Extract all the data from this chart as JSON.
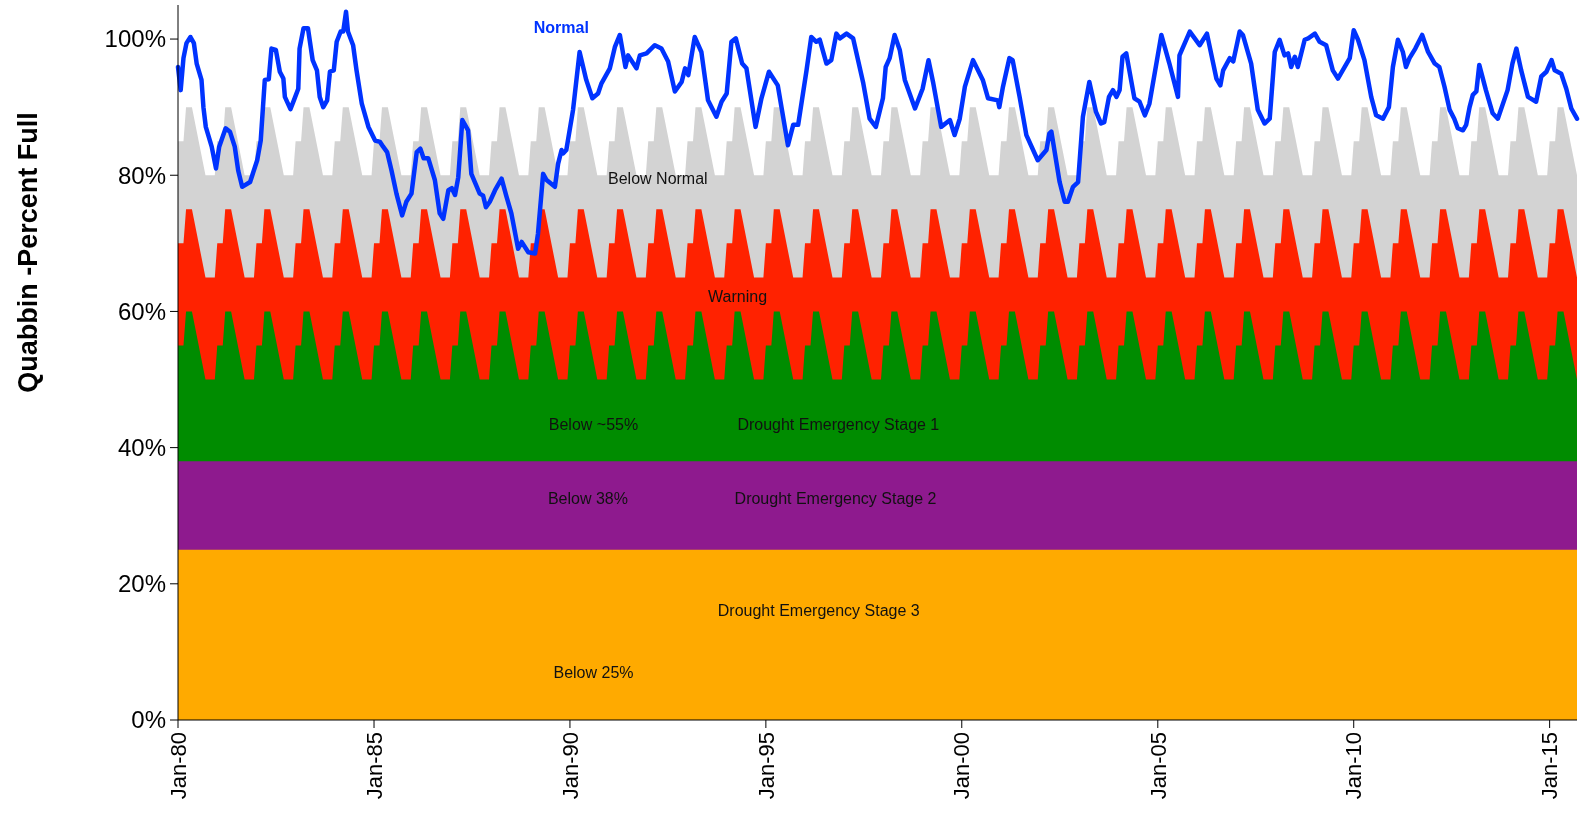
{
  "chart_data": {
    "type": "area",
    "ylabel": "Quabbin -Percent Full",
    "xlim": [
      "1980-01-01",
      "2015-09-13"
    ],
    "ylim": [
      0,
      105
    ],
    "xticks": [
      {
        "value": "1980-01-01",
        "label": "Jan-80"
      },
      {
        "value": "1985-01-01",
        "label": "Jan-85"
      },
      {
        "value": "1990-01-01",
        "label": "Jan-90"
      },
      {
        "value": "1995-01-01",
        "label": "Jan-95"
      },
      {
        "value": "2000-01-01",
        "label": "Jan-00"
      },
      {
        "value": "2005-01-01",
        "label": "Jan-05"
      },
      {
        "value": "2010-01-01",
        "label": "Jan-10"
      },
      {
        "value": "2015-01-01",
        "label": "Jan-15"
      }
    ],
    "yticks": [
      {
        "value": 0,
        "label": "0%"
      },
      {
        "value": 20,
        "label": "20%"
      },
      {
        "value": 40,
        "label": "40%"
      },
      {
        "value": 60,
        "label": "60%"
      },
      {
        "value": 80,
        "label": "80%"
      },
      {
        "value": 100,
        "label": "100%"
      }
    ],
    "annotations": [
      "Below ~55%",
      "Below 38%",
      "Below 25%"
    ],
    "x": [
      "1980-01-01",
      "1980-02-21",
      "1980-03-16",
      "1980-05-10",
      "1980-09-13",
      "1980-12-09",
      "1981-01-01",
      "1981-02-21",
      "1981-03-16",
      "1981-05-10",
      "1981-09-13",
      "1981-12-09",
      "1982-01-01",
      "1982-02-21",
      "1982-03-16",
      "1982-05-10",
      "1982-09-13",
      "1982-12-09",
      "1983-01-01",
      "1983-02-21",
      "1983-03-16",
      "1983-05-10",
      "1983-09-13",
      "1983-12-09",
      "1984-01-01",
      "1984-02-21",
      "1984-03-16",
      "1984-05-10",
      "1984-09-13",
      "1984-12-09",
      "1985-01-01",
      "1985-02-21",
      "1985-03-16",
      "1985-05-10",
      "1985-09-13",
      "1985-12-09",
      "1986-01-01",
      "1986-02-21",
      "1986-03-16",
      "1986-05-10",
      "1986-09-13",
      "1986-12-09",
      "1987-01-01",
      "1987-02-21",
      "1987-03-16",
      "1987-05-10",
      "1987-09-13",
      "1987-12-09",
      "1988-01-01",
      "1988-02-21",
      "1988-03-16",
      "1988-05-10",
      "1988-09-13",
      "1988-12-09",
      "1989-01-01",
      "1989-02-21",
      "1989-03-16",
      "1989-05-10",
      "1989-09-13",
      "1989-12-09",
      "1990-01-01",
      "1990-02-21",
      "1990-03-16",
      "1990-05-10",
      "1990-09-13",
      "1990-12-09",
      "1991-01-01",
      "1991-02-21",
      "1991-03-16",
      "1991-05-10",
      "1991-09-13",
      "1991-12-09",
      "1992-01-01",
      "1992-02-21",
      "1992-03-16",
      "1992-05-10",
      "1992-09-13",
      "1992-12-09",
      "1993-01-01",
      "1993-02-21",
      "1993-03-16",
      "1993-05-10",
      "1993-09-13",
      "1993-12-09",
      "1994-01-01",
      "1994-02-21",
      "1994-03-16",
      "1994-05-10",
      "1994-09-13",
      "1994-12-09",
      "1995-01-01",
      "1995-02-21",
      "1995-03-16",
      "1995-05-10",
      "1995-09-13",
      "1995-12-09",
      "1996-01-01",
      "1996-02-21",
      "1996-03-16",
      "1996-05-10",
      "1996-09-13",
      "1996-12-09",
      "1997-01-01",
      "1997-02-21",
      "1997-03-16",
      "1997-05-10",
      "1997-09-13",
      "1997-12-09",
      "1998-01-01",
      "1998-02-21",
      "1998-03-16",
      "1998-05-10",
      "1998-09-13",
      "1998-12-09",
      "1999-01-01",
      "1999-02-21",
      "1999-03-16",
      "1999-05-10",
      "1999-09-13",
      "1999-12-09",
      "2000-01-01",
      "2000-02-21",
      "2000-03-16",
      "2000-05-10",
      "2000-09-13",
      "2000-12-09",
      "2001-01-01",
      "2001-02-21",
      "2001-03-16",
      "2001-05-10",
      "2001-09-13",
      "2001-12-09",
      "2002-01-01",
      "2002-02-21",
      "2002-03-16",
      "2002-05-10",
      "2002-09-13",
      "2002-12-09",
      "2003-01-01",
      "2003-02-21",
      "2003-03-16",
      "2003-05-10",
      "2003-09-13",
      "2003-12-09",
      "2004-01-01",
      "2004-02-21",
      "2004-03-16",
      "2004-05-10",
      "2004-09-13",
      "2004-12-09",
      "2005-01-01",
      "2005-02-21",
      "2005-03-16",
      "2005-05-10",
      "2005-09-13",
      "2005-12-09",
      "2006-01-01",
      "2006-02-21",
      "2006-03-16",
      "2006-05-10",
      "2006-09-13",
      "2006-12-09",
      "2007-01-01",
      "2007-02-21",
      "2007-03-16",
      "2007-05-10",
      "2007-09-13",
      "2007-12-09",
      "2008-01-01",
      "2008-02-21",
      "2008-03-16",
      "2008-05-10",
      "2008-09-13",
      "2008-12-09",
      "2009-01-01",
      "2009-02-21",
      "2009-03-16",
      "2009-05-10",
      "2009-09-13",
      "2009-12-09",
      "2010-01-01",
      "2010-02-21",
      "2010-03-16",
      "2010-05-10",
      "2010-09-13",
      "2010-12-09",
      "2011-01-01",
      "2011-02-21",
      "2011-03-16",
      "2011-05-10",
      "2011-09-13",
      "2011-12-09",
      "2012-01-01",
      "2012-02-21",
      "2012-03-16",
      "2012-05-10",
      "2012-09-13",
      "2012-12-09",
      "2013-01-01",
      "2013-02-21",
      "2013-03-16",
      "2013-05-10",
      "2013-09-13",
      "2013-12-09",
      "2014-01-01",
      "2014-02-21",
      "2014-03-16",
      "2014-05-10",
      "2014-09-13",
      "2014-12-09",
      "2015-01-01",
      "2015-02-21",
      "2015-03-16",
      "2015-05-10",
      "2015-09-13"
    ],
    "series": [
      {
        "name": "Below Normal",
        "color": "#d3d3d3",
        "values": [
          85,
          85,
          90,
          90,
          80,
          80,
          85,
          85,
          90,
          90,
          80,
          80,
          85,
          85,
          90,
          90,
          80,
          80,
          85,
          85,
          90,
          90,
          80,
          80,
          85,
          85,
          90,
          90,
          80,
          80,
          85,
          85,
          90,
          90,
          80,
          80,
          85,
          85,
          90,
          90,
          80,
          80,
          85,
          85,
          90,
          90,
          80,
          80,
          85,
          85,
          90,
          90,
          80,
          80,
          85,
          85,
          90,
          90,
          80,
          80,
          85,
          85,
          90,
          90,
          80,
          80,
          85,
          85,
          90,
          90,
          80,
          80,
          85,
          85,
          90,
          90,
          80,
          80,
          85,
          85,
          90,
          90,
          80,
          80,
          85,
          85,
          90,
          90,
          80,
          80,
          85,
          85,
          90,
          90,
          80,
          80,
          85,
          85,
          90,
          90,
          80,
          80,
          85,
          85,
          90,
          90,
          80,
          80,
          85,
          85,
          90,
          90,
          80,
          80,
          85,
          85,
          90,
          90,
          80,
          80,
          85,
          85,
          90,
          90,
          80,
          80,
          85,
          85,
          90,
          90,
          80,
          80,
          85,
          85,
          90,
          90,
          80,
          80,
          85,
          85,
          90,
          90,
          80,
          80,
          85,
          85,
          90,
          90,
          80,
          80,
          85,
          85,
          90,
          90,
          80,
          80,
          85,
          85,
          90,
          90,
          80,
          80,
          85,
          85,
          90,
          90,
          80,
          80,
          85,
          85,
          90,
          90,
          80,
          80,
          85,
          85,
          90,
          90,
          80,
          80,
          85,
          85,
          90,
          90,
          80,
          80,
          85,
          85,
          90,
          90,
          80,
          80,
          85,
          85,
          90,
          90,
          80,
          80,
          85,
          85,
          90,
          90,
          80,
          80,
          85,
          85,
          90,
          90,
          80,
          80,
          85,
          85,
          90,
          90,
          80
        ]
      },
      {
        "name": "Warning",
        "color": "#ff2200",
        "values": [
          70,
          70,
          75,
          75,
          65,
          65,
          70,
          70,
          75,
          75,
          65,
          65,
          70,
          70,
          75,
          75,
          65,
          65,
          70,
          70,
          75,
          75,
          65,
          65,
          70,
          70,
          75,
          75,
          65,
          65,
          70,
          70,
          75,
          75,
          65,
          65,
          70,
          70,
          75,
          75,
          65,
          65,
          70,
          70,
          75,
          75,
          65,
          65,
          70,
          70,
          75,
          75,
          65,
          65,
          70,
          70,
          75,
          75,
          65,
          65,
          70,
          70,
          75,
          75,
          65,
          65,
          70,
          70,
          75,
          75,
          65,
          65,
          70,
          70,
          75,
          75,
          65,
          65,
          70,
          70,
          75,
          75,
          65,
          65,
          70,
          70,
          75,
          75,
          65,
          65,
          70,
          70,
          75,
          75,
          65,
          65,
          70,
          70,
          75,
          75,
          65,
          65,
          70,
          70,
          75,
          75,
          65,
          65,
          70,
          70,
          75,
          75,
          65,
          65,
          70,
          70,
          75,
          75,
          65,
          65,
          70,
          70,
          75,
          75,
          65,
          65,
          70,
          70,
          75,
          75,
          65,
          65,
          70,
          70,
          75,
          75,
          65,
          65,
          70,
          70,
          75,
          75,
          65,
          65,
          70,
          70,
          75,
          75,
          65,
          65,
          70,
          70,
          75,
          75,
          65,
          65,
          70,
          70,
          75,
          75,
          65,
          65,
          70,
          70,
          75,
          75,
          65,
          65,
          70,
          70,
          75,
          75,
          65,
          65,
          70,
          70,
          75,
          75,
          65,
          65,
          70,
          70,
          75,
          75,
          65,
          65,
          70,
          70,
          75,
          75,
          65,
          65,
          70,
          70,
          75,
          75,
          65,
          65,
          70,
          70,
          75,
          75,
          65,
          65,
          70,
          70,
          75,
          75,
          65,
          65,
          70,
          70,
          75,
          75,
          65
        ]
      },
      {
        "name": "Drought Emergency Stage 1",
        "color": "#008c00",
        "values": [
          55,
          55,
          60,
          60,
          50,
          50,
          55,
          55,
          60,
          60,
          50,
          50,
          55,
          55,
          60,
          60,
          50,
          50,
          55,
          55,
          60,
          60,
          50,
          50,
          55,
          55,
          60,
          60,
          50,
          50,
          55,
          55,
          60,
          60,
          50,
          50,
          55,
          55,
          60,
          60,
          50,
          50,
          55,
          55,
          60,
          60,
          50,
          50,
          55,
          55,
          60,
          60,
          50,
          50,
          55,
          55,
          60,
          60,
          50,
          50,
          55,
          55,
          60,
          60,
          50,
          50,
          55,
          55,
          60,
          60,
          50,
          50,
          55,
          55,
          60,
          60,
          50,
          50,
          55,
          55,
          60,
          60,
          50,
          50,
          55,
          55,
          60,
          60,
          50,
          50,
          55,
          55,
          60,
          60,
          50,
          50,
          55,
          55,
          60,
          60,
          50,
          50,
          55,
          55,
          60,
          60,
          50,
          50,
          55,
          55,
          60,
          60,
          50,
          50,
          55,
          55,
          60,
          60,
          50,
          50,
          55,
          55,
          60,
          60,
          50,
          50,
          55,
          55,
          60,
          60,
          50,
          50,
          55,
          55,
          60,
          60,
          50,
          50,
          55,
          55,
          60,
          60,
          50,
          50,
          55,
          55,
          60,
          60,
          50,
          50,
          55,
          55,
          60,
          60,
          50,
          50,
          55,
          55,
          60,
          60,
          50,
          50,
          55,
          55,
          60,
          60,
          50,
          50,
          55,
          55,
          60,
          60,
          50,
          50,
          55,
          55,
          60,
          60,
          50,
          50,
          55,
          55,
          60,
          60,
          50,
          50,
          55,
          55,
          60,
          60,
          50,
          50,
          55,
          55,
          60,
          60,
          50,
          50,
          55,
          55,
          60,
          60,
          50,
          50,
          55,
          55,
          60,
          60,
          50,
          50,
          55,
          55,
          60,
          60,
          50
        ]
      },
      {
        "name": "Drought Emergency Stage 2",
        "color": "#8e1a8e",
        "x": [
          "1980-01-01",
          "2015-09-13"
        ],
        "values": [
          38,
          38
        ]
      },
      {
        "name": "Drought Emergency Stage 3",
        "color": "#ffaa00",
        "x": [
          "1980-01-01",
          "2015-09-13"
        ],
        "values": [
          25,
          25
        ]
      },
      {
        "name": "Normal",
        "type": "line",
        "color": "#0033ff",
        "x": [
          "1980-01-01",
          "1980-01-26",
          "1980-02-21",
          "1980-03-20",
          "1980-04-26",
          "1980-05-28",
          "1980-06-23",
          "1980-08-07",
          "1980-08-25",
          "1980-09-16",
          "1980-11-10",
          "1980-12-20",
          "1981-01-19",
          "1981-03-20",
          "1981-04-29",
          "1981-06-13",
          "1981-07-15",
          "1981-08-21",
          "1981-11-03",
          "1982-01-08",
          "1982-02-10",
          "1982-03-20",
          "1982-04-26",
          "1982-05-21",
          "1982-07-01",
          "1982-08-07",
          "1982-09-09",
          "1982-09-23",
          "1982-11-14",
          "1982-12-16",
          "1983-01-26",
          "1983-02-07",
          "1983-03-16",
          "1983-04-26",
          "1983-06-09",
          "1983-07-19",
          "1983-08-14",
          "1983-09-16",
          "1983-10-22",
          "1983-11-17",
          "1983-12-23",
          "1984-01-19",
          "1984-02-25",
          "1984-03-20",
          "1984-04-15",
          "1984-05-03",
          "1984-06-20",
          "1984-07-22",
          "1984-09-09",
          "1984-11-10",
          "1985-01-11",
          "1985-02-25",
          "1985-03-27",
          "1985-05-03",
          "1985-06-13",
          "1985-07-29",
          "1985-09-20",
          "1985-10-29",
          "1985-12-16",
          "1986-02-03",
          "1986-03-09",
          "1986-04-08",
          "1986-05-21",
          "1986-07-22",
          "1986-09-05",
          "1986-10-08",
          "1986-11-25",
          "1986-12-27",
          "1987-01-26",
          "1987-02-25",
          "1987-04-04",
          "1987-05-28",
          "1987-06-27",
          "1987-09-13",
          "1987-10-15",
          "1987-11-10",
          "1987-12-16",
          "1988-02-03",
          "1988-04-04",
          "1988-05-17",
          "1988-07-04",
          "1988-09-05",
          "1988-10-08",
          "1988-12-09",
          "1989-02-10",
          "1989-03-09",
          "1989-04-26",
          "1989-05-28",
          "1989-08-14",
          "1989-09-13",
          "1989-10-15",
          "1989-10-29",
          "1989-11-28",
          "1990-01-30",
          "1990-04-01",
          "1990-06-02",
          "1990-07-29",
          "1990-09-20",
          "1990-10-22",
          "1991-01-08",
          "1991-02-25",
          "1991-04-11",
          "1991-06-02",
          "1991-06-27",
          "1991-09-13",
          "1991-10-15",
          "1991-12-16",
          "1992-03-02",
          "1992-05-03",
          "1992-07-04",
          "1992-09-05",
          "1992-11-07",
          "1992-12-09",
          "1993-01-08",
          "1993-03-09",
          "1993-05-10",
          "1993-07-11",
          "1993-09-27",
          "1993-11-14",
          "1994-01-01",
          "1994-02-14",
          "1994-03-27",
          "1994-05-25",
          "1994-07-04",
          "1994-09-27",
          "1994-11-21",
          "1995-01-30",
          "1995-04-22",
          "1995-07-26",
          "1995-09-13",
          "1995-10-29",
          "1996-01-15",
          "1996-02-28",
          "1996-04-15",
          "1996-05-17",
          "1996-07-19",
          "1996-09-02",
          "1996-10-19",
          "1996-11-21",
          "1997-01-22",
          "1997-03-24",
          "1997-06-27",
          "1997-08-25",
          "1997-10-22",
          "1997-12-27",
          "1998-01-22",
          "1998-02-28",
          "1998-04-15",
          "1998-06-02",
          "1998-07-19",
          "1998-10-22",
          "1999-01-01",
          "1999-02-25",
          "1999-04-08",
          "1999-06-23",
          "1999-09-13",
          "1999-10-26",
          "1999-12-13",
          "2000-01-30",
          "2000-04-15",
          "2000-07-15",
          "2000-09-02",
          "2000-12-02",
          "2000-12-16",
          "2001-01-19",
          "2001-03-20",
          "2001-04-19",
          "2001-06-23",
          "2001-08-25",
          "2001-12-09",
          "2002-02-28",
          "2002-03-27",
          "2002-04-15",
          "2002-07-01",
          "2002-08-17",
          "2002-09-16",
          "2002-11-03",
          "2002-12-20",
          "2003-02-03",
          "2003-04-04",
          "2003-06-05",
          "2003-07-22",
          "2003-08-21",
          "2003-10-04",
          "2003-11-10",
          "2003-12-13",
          "2004-01-11",
          "2004-02-07",
          "2004-03-13",
          "2004-05-28",
          "2004-07-15",
          "2004-09-02",
          "2004-10-15",
          "2005-02-03",
          "2005-04-19",
          "2005-07-08",
          "2005-07-22",
          "2005-10-26",
          "2006-01-26",
          "2006-04-04",
          "2006-07-01",
          "2006-08-07",
          "2006-09-02",
          "2006-11-03",
          "2006-12-05",
          "2007-02-03",
          "2007-03-05",
          "2007-05-21",
          "2007-07-22",
          "2007-09-23",
          "2007-11-10",
          "2007-12-27",
          "2008-02-10",
          "2008-03-27",
          "2008-04-29",
          "2008-05-28",
          "2008-07-01",
          "2008-07-29",
          "2008-10-01",
          "2008-11-03",
          "2009-01-04",
          "2009-02-17",
          "2009-04-19",
          "2009-06-20",
          "2009-08-07",
          "2009-11-25",
          "2010-01-01",
          "2010-02-10",
          "2010-04-11",
          "2010-06-13",
          "2010-07-29",
          "2010-10-01",
          "2010-11-25",
          "2011-01-01",
          "2011-02-17",
          "2011-04-04",
          "2011-05-03",
          "2011-06-05",
          "2011-07-29",
          "2011-10-01",
          "2011-11-25",
          "2012-01-26",
          "2012-03-09",
          "2012-04-26",
          "2012-06-13",
          "2012-07-26",
          "2012-08-28",
          "2012-10-15",
          "2012-11-14",
          "2012-12-16",
          "2013-01-15",
          "2013-02-17",
          "2013-03-16",
          "2013-05-17",
          "2013-07-19",
          "2013-09-05",
          "2013-12-05",
          "2014-01-19",
          "2014-02-25",
          "2014-04-11",
          "2014-06-13",
          "2014-08-28",
          "2014-10-15",
          "2014-12-02",
          "2015-01-19",
          "2015-02-17",
          "2015-04-19",
          "2015-06-05",
          "2015-07-22",
          "2015-09-13"
        ],
        "values": [
          95.9,
          92.5,
          97.2,
          99.4,
          100.3,
          99.4,
          96.4,
          94,
          90,
          87.1,
          84.2,
          81,
          84.2,
          86.9,
          86.4,
          84.2,
          80.7,
          78.3,
          79,
          82.2,
          85.1,
          94,
          94.1,
          98.6,
          98.4,
          95.2,
          94.2,
          91.5,
          89.7,
          91,
          92.7,
          98.6,
          101.6,
          101.6,
          96.9,
          95.4,
          91.5,
          90,
          91,
          95.2,
          95.4,
          99.6,
          101.1,
          101.1,
          104,
          101.1,
          99.1,
          95.4,
          90.5,
          87.1,
          85.1,
          84.9,
          84.2,
          83.4,
          80.7,
          77.3,
          74.1,
          76.1,
          77.3,
          83.4,
          83.9,
          82.5,
          82.5,
          79.3,
          74.4,
          73.6,
          77.8,
          78.1,
          77.1,
          79.7,
          88.1,
          86.6,
          80.2,
          77.3,
          77,
          75.3,
          76.1,
          77.8,
          79.5,
          77,
          74.4,
          69.2,
          70.2,
          68.7,
          68.5,
          71.4,
          80.2,
          79.3,
          78.3,
          81.7,
          83.7,
          83.2,
          83.7,
          89.6,
          98.1,
          94,
          91.3,
          92,
          93.5,
          95.7,
          98.9,
          100.6,
          95.9,
          97.6,
          95.7,
          97.6,
          97.9,
          99.1,
          98.6,
          96.7,
          92.3,
          93.7,
          95.7,
          94.7,
          100.3,
          98.1,
          91,
          88.6,
          90.8,
          92,
          99.6,
          100.1,
          96.4,
          95.7,
          87.1,
          91.3,
          95.2,
          93.2,
          84.4,
          87.4,
          87.4,
          95.4,
          100.3,
          99.6,
          99.9,
          96.4,
          96.9,
          100.8,
          100.1,
          100.8,
          100.1,
          93.5,
          88.3,
          87.1,
          91.3,
          95.9,
          97.2,
          100.6,
          98.4,
          94,
          89.8,
          92.7,
          96.9,
          93.7,
          87.1,
          88.1,
          85.9,
          88.3,
          93,
          96.9,
          94,
          91.3,
          91,
          90,
          93,
          97.2,
          96.9,
          91.5,
          85.9,
          82.2,
          83.7,
          86.1,
          86.4,
          79,
          76.1,
          76.1,
          78.3,
          79,
          88.6,
          93.7,
          89.3,
          87.6,
          87.8,
          91.5,
          92.5,
          91.5,
          92.5,
          97.4,
          97.9,
          91.3,
          90.8,
          88.8,
          90.5,
          100.6,
          96.4,
          91.5,
          97.6,
          101.1,
          99.1,
          100.8,
          94.2,
          93.2,
          95.4,
          97.2,
          96.7,
          101.1,
          100.6,
          96.4,
          89.6,
          87.6,
          88.3,
          98.1,
          99.9,
          97.6,
          97.9,
          95.9,
          97.4,
          95.9,
          99.9,
          100.1,
          100.8,
          99.6,
          99.1,
          95.4,
          94.2,
          97.2,
          101.3,
          99.9,
          96.9,
          91.5,
          88.8,
          88.3,
          90,
          95.9,
          99.9,
          98.1,
          95.9,
          97.2,
          98.6,
          100.6,
          98.1,
          96.4,
          95.9,
          93,
          89.6,
          88.3,
          86.9,
          86.6,
          87.4,
          90,
          91.8,
          92.3,
          96.2,
          92.5,
          89.1,
          88.3,
          92.5,
          96.4,
          98.6,
          95.4,
          91.5,
          90.8,
          94.5,
          95.2,
          96.9,
          95.4,
          94.9,
          92.7,
          89.8,
          88.3
        ]
      }
    ]
  }
}
